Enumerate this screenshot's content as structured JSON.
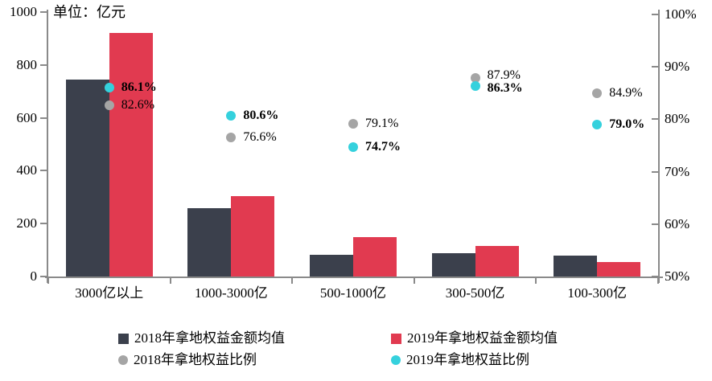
{
  "chart_data": {
    "type": "bar",
    "unit_label": "单位：亿元",
    "categories": [
      "3000亿以上",
      "1000-3000亿",
      "500-1000亿",
      "300-500亿",
      "100-300亿"
    ],
    "series": [
      {
        "name": "2018年拿地权益金额均值",
        "type": "bar",
        "axis": "left",
        "color": "#3b404c",
        "values": [
          745,
          258,
          83,
          88,
          78
        ]
      },
      {
        "name": "2019年拿地权益金额均值",
        "type": "bar",
        "axis": "left",
        "color": "#e13a50",
        "values": [
          920,
          305,
          148,
          117,
          55
        ]
      },
      {
        "name": "2018年拿地权益比例",
        "type": "scatter",
        "axis": "right",
        "color": "#a5a5a5",
        "values": [
          82.6,
          76.6,
          79.1,
          87.9,
          84.9
        ],
        "labels": [
          "82.6%",
          "76.6%",
          "79.1%",
          "87.9%",
          "84.9%"
        ],
        "label_bold": false,
        "label_dy": [
          0,
          0,
          0,
          -3,
          0
        ]
      },
      {
        "name": "2019年拿地权益比例",
        "type": "scatter",
        "axis": "right",
        "color": "#35d1dd",
        "values": [
          86.1,
          80.6,
          74.7,
          86.3,
          79.0
        ],
        "labels": [
          "86.1%",
          "80.6%",
          "74.7%",
          "86.3%",
          "79.0%"
        ],
        "label_bold": true,
        "label_dy": [
          0,
          0,
          0,
          3,
          0
        ]
      }
    ],
    "left_axis": {
      "min": 0,
      "max": 1000,
      "tick_labels": [
        "0",
        "200",
        "400",
        "600",
        "800",
        "1000"
      ]
    },
    "right_axis": {
      "min": 50,
      "max": 100,
      "tick_labels": [
        "50%",
        "60%",
        "70%",
        "80%",
        "90%",
        "100%"
      ]
    },
    "grid": false,
    "legend_position": "bottom"
  }
}
